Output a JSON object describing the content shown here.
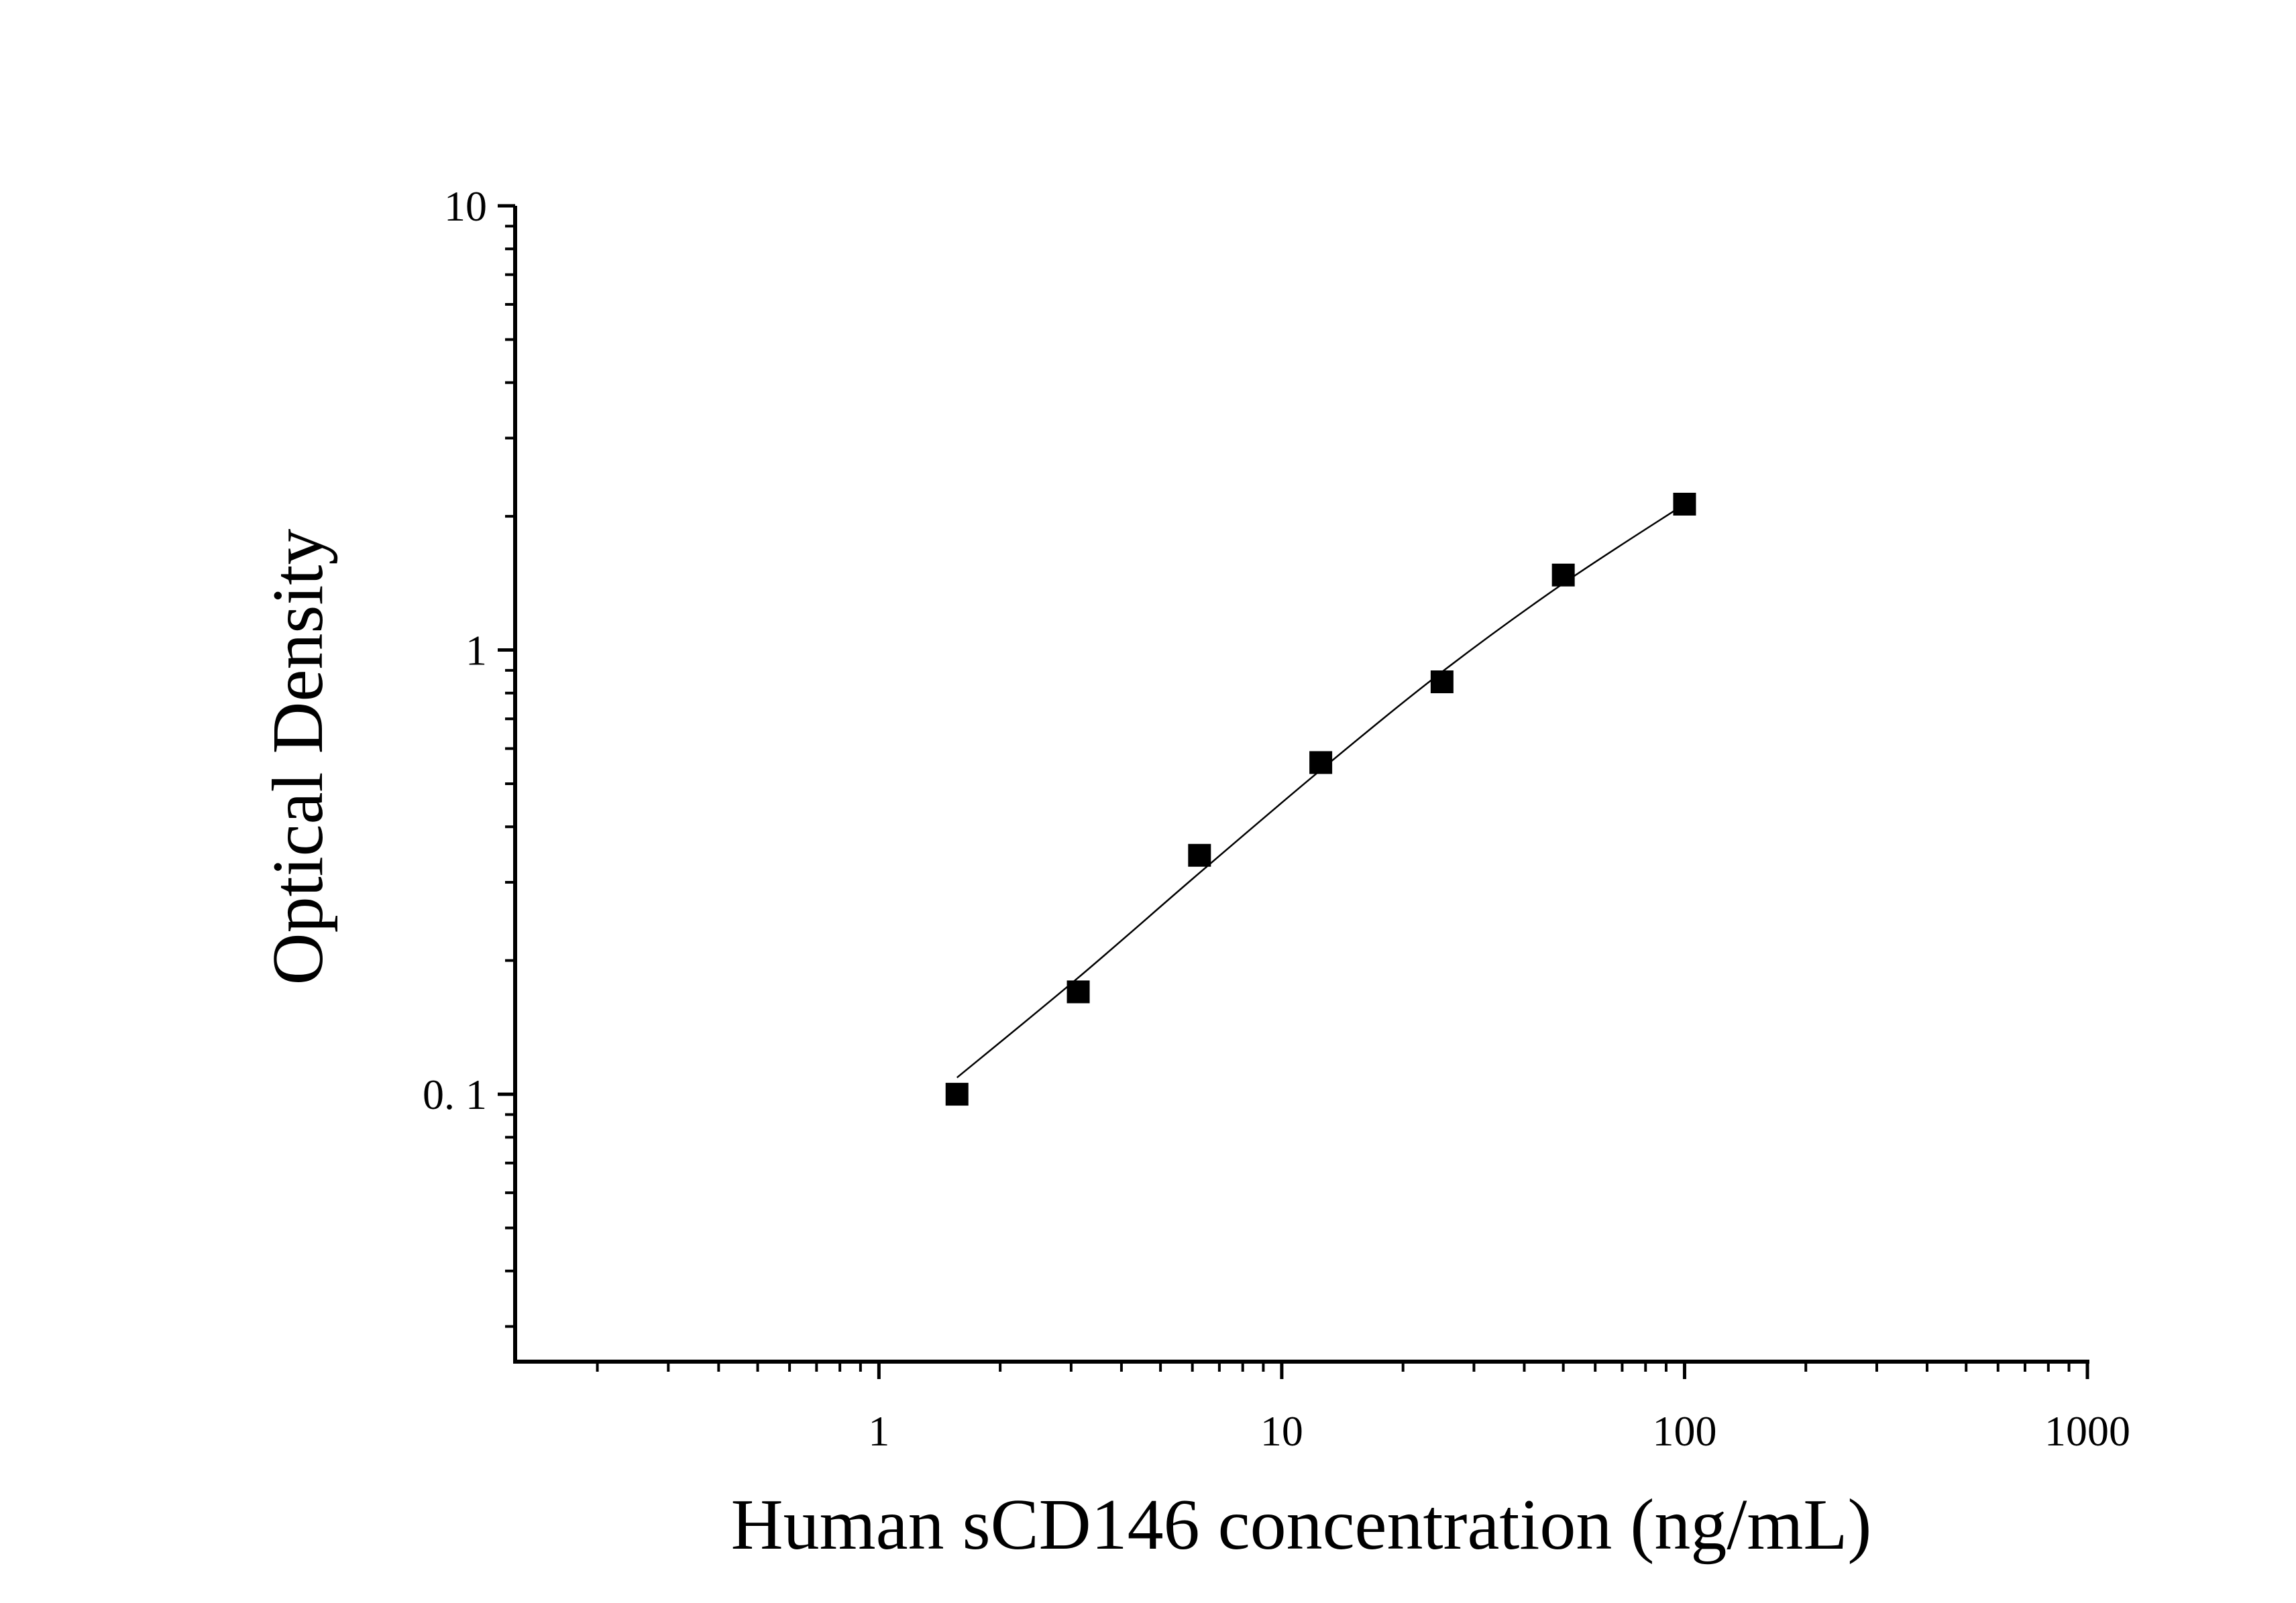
{
  "chart_data": {
    "type": "scatter",
    "title": "",
    "xlabel": "Human sCD146 concentration (ng/mL)",
    "ylabel": "Optical Density",
    "x_scale": "log",
    "y_scale": "log",
    "xlim": [
      0.125,
      1000
    ],
    "ylim": [
      0.025,
      10
    ],
    "x_tick_labels": [
      "1",
      "10",
      "100",
      "1000"
    ],
    "y_tick_labels": [
      "0. 1",
      "1",
      "10"
    ],
    "grid": false,
    "legend": "none",
    "marker": "square",
    "marker_color": "#000000",
    "line_color": "#000000",
    "series": [
      {
        "x": [
          1.5625,
          3.125,
          6.25,
          12.5,
          25,
          50,
          100
        ],
        "y": [
          0.1,
          0.17,
          0.345,
          0.558,
          0.848,
          1.475,
          2.13
        ]
      }
    ],
    "fit_curve": {
      "x": [
        1.5625,
        3.125,
        6.25,
        12.5,
        25,
        50,
        100
      ],
      "y": [
        0.109,
        0.183,
        0.315,
        0.537,
        0.893,
        1.412,
        2.13
      ]
    }
  }
}
